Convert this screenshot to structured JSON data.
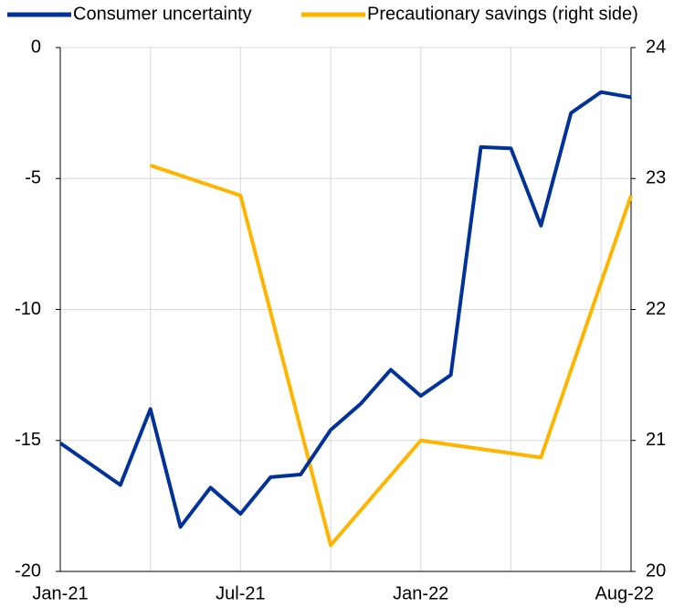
{
  "chart_data": {
    "type": "line",
    "categories": [
      "Jan-21",
      null,
      null,
      null,
      null,
      null,
      "Jul-21",
      null,
      null,
      null,
      null,
      null,
      "Jan-22",
      null,
      null,
      null,
      null,
      null,
      null,
      "Aug-22"
    ],
    "series": [
      {
        "name": "Consumer uncertainty",
        "color": "#003299",
        "values": [
          -15.1,
          -15.9,
          -16.7,
          -13.8,
          -18.3,
          -16.8,
          -17.8,
          -16.4,
          -16.3,
          -14.6,
          -13.6,
          -12.3,
          -13.3,
          -12.5,
          -3.8,
          -3.85,
          -6.8,
          -2.5,
          -1.7,
          -1.9
        ]
      },
      {
        "name": "Precautionary savings (right side)",
        "color": "#ffb400",
        "axis": "y2",
        "connect_gaps": true,
        "values": [
          null,
          null,
          null,
          23.1,
          null,
          null,
          22.87,
          null,
          null,
          20.2,
          null,
          null,
          21.0,
          null,
          null,
          null,
          20.87,
          null,
          null,
          22.87
        ]
      }
    ],
    "ylim": [
      -20,
      0
    ],
    "yticks": [
      -20,
      -15,
      -10,
      -5,
      0
    ],
    "y2lim": [
      20,
      24
    ],
    "y2ticks": [
      20,
      21,
      22,
      23,
      24
    ],
    "grid": true,
    "legend": "top"
  }
}
